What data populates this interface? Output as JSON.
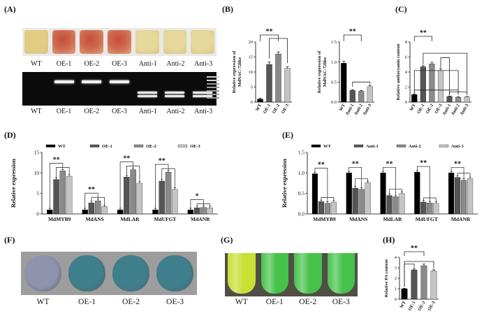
{
  "panels": {
    "A": {
      "label": "(A)",
      "callus_labels": [
        "WT",
        "OE-1",
        "OE-2",
        "OE-3",
        "Anti-1",
        "Anti-2",
        "Anti-3"
      ],
      "gel_labels": [
        "WT",
        "OE-1",
        "OE-2",
        "OE-3",
        "Anti-1",
        "Anti-2",
        "Anti-3"
      ],
      "colors": {
        "wt": "#e2cd82",
        "oe": "#c75a42",
        "anti": "#e6d79a",
        "gel_bg": "#0b0b0b"
      }
    },
    "F": {
      "label": "(F)",
      "labels": [
        "WT",
        "OE-1",
        "OE-2",
        "OE-3"
      ],
      "colors": {
        "wt": "#8f93ad",
        "oe": "#3f7f8c"
      }
    },
    "G": {
      "label": "(G)",
      "labels": [
        "WT",
        "OE-1",
        "OE-2",
        "OE-3"
      ],
      "colors": {
        "wt": "#c8df34",
        "oe": "#46c24a",
        "bg": "#4f4f45"
      }
    }
  },
  "chart_data": [
    {
      "panel": "(B)",
      "type": "bar",
      "categories": [
        "WT",
        "OE-1",
        "OE-2",
        "OE-3"
      ],
      "values": [
        1,
        12.5,
        16,
        11.2
      ],
      "errors": [
        0.3,
        0.8,
        0.7,
        0.5
      ],
      "colors": [
        "#000000",
        "#555555",
        "#8a8a8a",
        "#c4c4c4"
      ],
      "ylabel_lines": [
        "Relative expression of",
        "MdNAC-72like"
      ],
      "ylim": [
        0,
        20
      ],
      "yticks": [
        "0",
        "5",
        "10",
        "15",
        "20"
      ],
      "significance": [
        "**"
      ]
    },
    {
      "panel": "",
      "type": "bar",
      "categories": [
        "WT",
        "Anti-1",
        "Anti-2",
        "Anti-3"
      ],
      "values": [
        0.97,
        0.29,
        0.27,
        0.39
      ],
      "errors": [
        0.05,
        0.02,
        0.02,
        0.03
      ],
      "colors": [
        "#000000",
        "#555555",
        "#8a8a8a",
        "#c4c4c4"
      ],
      "ylabel_lines": [
        "Relative expression of",
        "MdNAC-72like"
      ],
      "ylim": [
        0,
        1.5
      ],
      "yticks": [
        "0.0",
        "0.5",
        "1.0",
        "1.5"
      ],
      "significance": [
        "**"
      ]
    },
    {
      "panel": "(C)",
      "type": "bar",
      "categories": [
        "WT",
        "OE-1",
        "OE-2",
        "OE-3",
        "Anti-1",
        "Anti-2",
        "Anti-3"
      ],
      "values": [
        1,
        4.7,
        5.1,
        4.2,
        0.75,
        0.65,
        0.7
      ],
      "errors": [
        0.1,
        0.15,
        0.2,
        0.2,
        0.05,
        0.05,
        0.05
      ],
      "colors": [
        "#000000",
        "#555555",
        "#8a8a8a",
        "#c4c4c4",
        "#555555",
        "#8a8a8a",
        "#c4c4c4"
      ],
      "ylabel_lines": [
        "Relative anthocyanin content"
      ],
      "ylim": [
        0,
        8
      ],
      "yticks": [
        "0",
        "2",
        "4",
        "6",
        "8"
      ],
      "significance": [
        "**"
      ]
    },
    {
      "panel": "(D)",
      "type": "bar",
      "legend": [
        "WT",
        "OE-1",
        "OE-2",
        "OE-3"
      ],
      "colors": [
        "#000000",
        "#555555",
        "#8a8a8a",
        "#c4c4c4"
      ],
      "categories": [
        "MdMYB9",
        "MdANS",
        "MdLAR",
        "MdUFGT",
        "MdANR"
      ],
      "series": [
        {
          "name": "WT",
          "values": [
            1,
            1,
            1,
            1,
            1
          ]
        },
        {
          "name": "OE-1",
          "values": [
            8.4,
            2.7,
            9,
            8,
            1.5
          ]
        },
        {
          "name": "OE-2",
          "values": [
            10.5,
            3.2,
            10.8,
            10.2,
            1.6
          ]
        },
        {
          "name": "OE-3",
          "values": [
            9.2,
            1.8,
            7.5,
            6,
            1.5
          ]
        }
      ],
      "ylabel": "Relative expression",
      "ylim": [
        0,
        15
      ],
      "yticks": [
        "0",
        "5",
        "10",
        "15"
      ],
      "significance": [
        "**",
        "**",
        "**",
        "**",
        "*"
      ]
    },
    {
      "panel": "(E)",
      "type": "bar",
      "legend": [
        "WT",
        "Anti-1",
        "Anti-2",
        "Anti-3"
      ],
      "colors": [
        "#000000",
        "#555555",
        "#8a8a8a",
        "#c4c4c4"
      ],
      "categories": [
        "MdMYB9",
        "MdANS",
        "MdLAR",
        "MdUFGT",
        "MdANR"
      ],
      "series": [
        {
          "name": "WT",
          "values": [
            0.98,
            1,
            1,
            1.02,
            1
          ]
        },
        {
          "name": "Anti-1",
          "values": [
            0.3,
            0.63,
            0.45,
            0.29,
            0.89
          ]
        },
        {
          "name": "Anti-2",
          "values": [
            0.26,
            0.6,
            0.42,
            0.27,
            0.82
          ]
        },
        {
          "name": "Anti-3",
          "values": [
            0.29,
            0.76,
            0.5,
            0.26,
            0.86
          ]
        }
      ],
      "ylabel": "Relative expression",
      "ylim": [
        0,
        1.5
      ],
      "yticks": [
        "0.0",
        "0.5",
        "1.0",
        "1.5"
      ],
      "significance": [
        "**",
        "**",
        "**",
        "**",
        "**"
      ]
    },
    {
      "panel": "(H)",
      "type": "bar",
      "categories": [
        "WT",
        "OE-1",
        "OE-2",
        "OE-3"
      ],
      "values": [
        1,
        2.8,
        3.2,
        2.7
      ],
      "errors": [
        0.05,
        0.1,
        0.15,
        0.1
      ],
      "colors": [
        "#000000",
        "#555555",
        "#8a8a8a",
        "#c4c4c4"
      ],
      "ylabel_lines": [
        "Relative PA content"
      ],
      "ylim": [
        0,
        4
      ],
      "yticks": [
        "0",
        "1",
        "2",
        "3",
        "4"
      ],
      "significance": [
        "**"
      ]
    }
  ]
}
